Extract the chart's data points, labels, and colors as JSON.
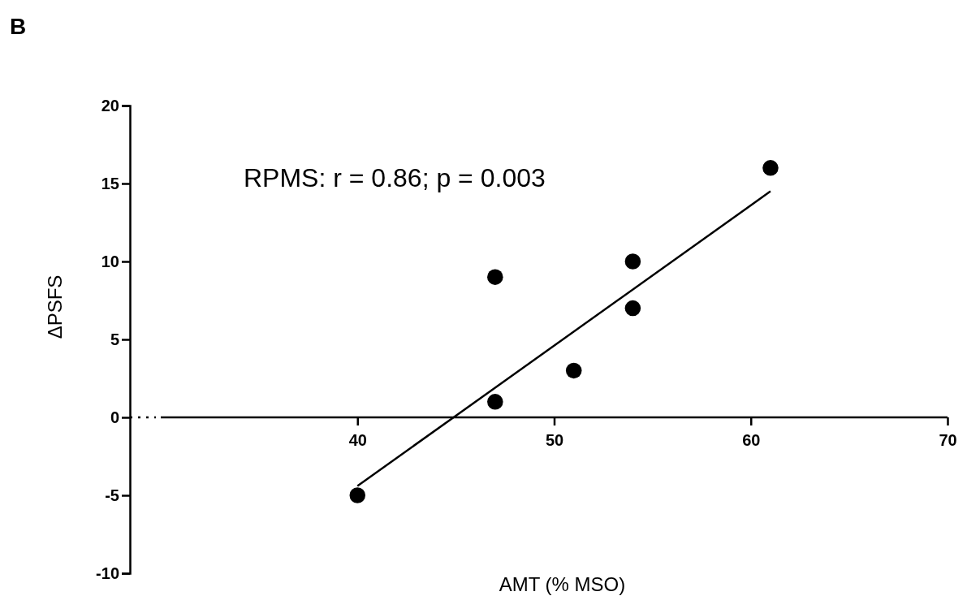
{
  "chart_data": {
    "type": "scatter",
    "title": "B",
    "xlabel": "AMT (% MSO)",
    "ylabel": "ΔPSFS",
    "annotations": [
      "RPMS: r = 0.86; p = 0.003"
    ],
    "xlim": [
      30,
      70
    ],
    "xticks": [
      40,
      50,
      60,
      70
    ],
    "ylim": [
      -10,
      20
    ],
    "yticks": [
      -10,
      -5,
      0,
      5,
      10,
      15,
      20
    ],
    "grid": false,
    "marker": "circle",
    "series": [
      {
        "color": "#000000",
        "x": [
          40,
          47,
          47,
          51,
          54,
          54,
          61
        ],
        "values": [
          -5,
          1,
          9,
          3,
          10,
          7,
          16
        ]
      },
      {
        "type": "line",
        "color": "#000000",
        "line_style": "solid",
        "marker": "none",
        "x": [
          40,
          61
        ],
        "values": [
          -4.4,
          14.5
        ]
      }
    ]
  }
}
